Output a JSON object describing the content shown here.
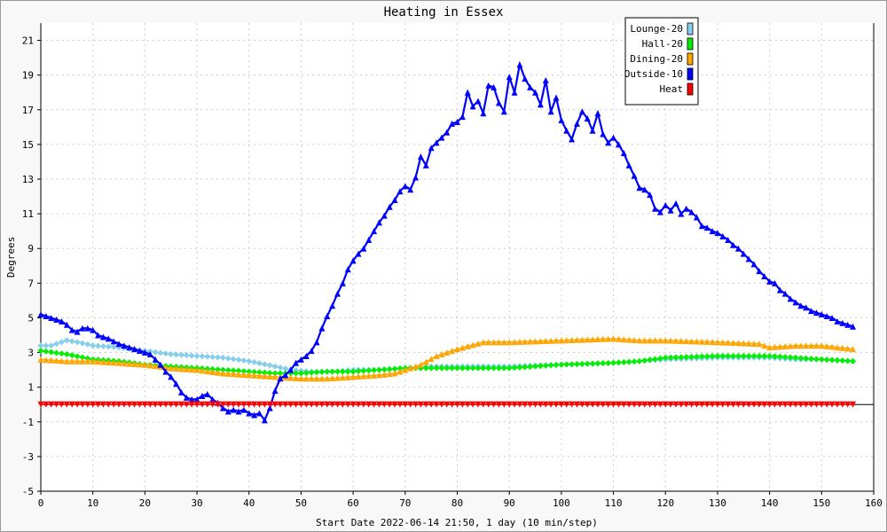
{
  "chart_data": {
    "type": "line",
    "title": "Heating in Essex",
    "xlabel": "Start Date 2022-06-14 21:50, 1 day (10 min/step)",
    "ylabel": "Degrees",
    "xlim": [
      0,
      160
    ],
    "ylim": [
      -5,
      22
    ],
    "xticks": [
      0,
      10,
      20,
      30,
      40,
      50,
      60,
      70,
      80,
      90,
      100,
      110,
      120,
      130,
      140,
      150,
      160
    ],
    "yticks": [
      -5,
      -3,
      -1,
      1,
      3,
      5,
      7,
      9,
      11,
      13,
      15,
      17,
      19,
      21
    ],
    "grid": true,
    "legend_position": "top-right",
    "series": [
      {
        "name": "Lounge-20",
        "color": "#87ceeb",
        "marker": "diamond",
        "points": [
          [
            0,
            3.4
          ],
          [
            2,
            3.4
          ],
          [
            4,
            3.6
          ],
          [
            5,
            3.7
          ],
          [
            7,
            3.6
          ],
          [
            10,
            3.4
          ],
          [
            15,
            3.3
          ],
          [
            20,
            3.1
          ],
          [
            25,
            2.9
          ],
          [
            30,
            2.8
          ],
          [
            35,
            2.7
          ],
          [
            40,
            2.5
          ],
          [
            45,
            2.2
          ],
          [
            48,
            2.0
          ],
          [
            52,
            1.9
          ],
          [
            56,
            1.9
          ],
          [
            60,
            2.0
          ],
          [
            65,
            2.0
          ],
          [
            70,
            2.1
          ],
          [
            75,
            2.2
          ],
          [
            80,
            2.2
          ],
          [
            90,
            2.2
          ],
          [
            100,
            2.3
          ],
          [
            110,
            2.4
          ],
          [
            120,
            2.6
          ],
          [
            130,
            2.7
          ],
          [
            140,
            2.7
          ],
          [
            145,
            2.6
          ],
          [
            150,
            2.6
          ],
          [
            156,
            2.5
          ]
        ]
      },
      {
        "name": "Hall-20",
        "color": "#00ee00",
        "marker": "diamond",
        "points": [
          [
            0,
            3.1
          ],
          [
            5,
            2.9
          ],
          [
            10,
            2.6
          ],
          [
            15,
            2.5
          ],
          [
            20,
            2.3
          ],
          [
            25,
            2.2
          ],
          [
            30,
            2.1
          ],
          [
            35,
            2.0
          ],
          [
            40,
            1.9
          ],
          [
            45,
            1.8
          ],
          [
            50,
            1.8
          ],
          [
            55,
            1.9
          ],
          [
            60,
            1.9
          ],
          [
            65,
            2.0
          ],
          [
            70,
            2.1
          ],
          [
            75,
            2.1
          ],
          [
            80,
            2.1
          ],
          [
            90,
            2.1
          ],
          [
            100,
            2.3
          ],
          [
            110,
            2.4
          ],
          [
            115,
            2.5
          ],
          [
            120,
            2.7
          ],
          [
            130,
            2.8
          ],
          [
            140,
            2.8
          ],
          [
            145,
            2.7
          ],
          [
            150,
            2.6
          ],
          [
            156,
            2.5
          ]
        ]
      },
      {
        "name": "Dining-20",
        "color": "#ffa500",
        "marker": "triangle",
        "points": [
          [
            0,
            2.6
          ],
          [
            5,
            2.5
          ],
          [
            10,
            2.5
          ],
          [
            15,
            2.4
          ],
          [
            20,
            2.3
          ],
          [
            25,
            2.1
          ],
          [
            30,
            2.0
          ],
          [
            35,
            1.8
          ],
          [
            40,
            1.7
          ],
          [
            45,
            1.6
          ],
          [
            50,
            1.5
          ],
          [
            55,
            1.5
          ],
          [
            60,
            1.6
          ],
          [
            65,
            1.7
          ],
          [
            68,
            1.8
          ],
          [
            70,
            2.0
          ],
          [
            73,
            2.3
          ],
          [
            76,
            2.8
          ],
          [
            80,
            3.2
          ],
          [
            85,
            3.6
          ],
          [
            90,
            3.6
          ],
          [
            100,
            3.7
          ],
          [
            110,
            3.8
          ],
          [
            115,
            3.7
          ],
          [
            120,
            3.7
          ],
          [
            130,
            3.6
          ],
          [
            138,
            3.5
          ],
          [
            140,
            3.3
          ],
          [
            145,
            3.4
          ],
          [
            150,
            3.4
          ],
          [
            156,
            3.2
          ]
        ]
      },
      {
        "name": "Outside-10",
        "color": "#0000ff",
        "marker": "triangle",
        "points": [
          [
            0,
            5.2
          ],
          [
            2,
            5.0
          ],
          [
            4,
            4.8
          ],
          [
            5,
            4.6
          ],
          [
            6,
            4.3
          ],
          [
            7,
            4.2
          ],
          [
            8,
            4.4
          ],
          [
            9,
            4.4
          ],
          [
            10,
            4.3
          ],
          [
            11,
            4.0
          ],
          [
            13,
            3.8
          ],
          [
            15,
            3.5
          ],
          [
            17,
            3.3
          ],
          [
            19,
            3.1
          ],
          [
            21,
            2.9
          ],
          [
            22,
            2.6
          ],
          [
            23,
            2.3
          ],
          [
            24,
            1.9
          ],
          [
            25,
            1.6
          ],
          [
            26,
            1.2
          ],
          [
            27,
            0.7
          ],
          [
            28,
            0.4
          ],
          [
            29,
            0.3
          ],
          [
            30,
            0.3
          ],
          [
            31,
            0.5
          ],
          [
            32,
            0.6
          ],
          [
            33,
            0.3
          ],
          [
            34,
            0.1
          ],
          [
            35,
            -0.2
          ],
          [
            36,
            -0.4
          ],
          [
            37,
            -0.3
          ],
          [
            38,
            -0.4
          ],
          [
            39,
            -0.3
          ],
          [
            40,
            -0.5
          ],
          [
            41,
            -0.6
          ],
          [
            42,
            -0.5
          ],
          [
            43,
            -0.9
          ],
          [
            44,
            -0.2
          ],
          [
            45,
            0.8
          ],
          [
            46,
            1.5
          ],
          [
            47,
            1.7
          ],
          [
            48,
            2.0
          ],
          [
            49,
            2.4
          ],
          [
            50,
            2.6
          ],
          [
            51,
            2.8
          ],
          [
            52,
            3.1
          ],
          [
            53,
            3.6
          ],
          [
            54,
            4.4
          ],
          [
            55,
            5.1
          ],
          [
            56,
            5.7
          ],
          [
            57,
            6.4
          ],
          [
            58,
            7.0
          ],
          [
            59,
            7.8
          ],
          [
            60,
            8.3
          ],
          [
            61,
            8.7
          ],
          [
            62,
            9.0
          ],
          [
            63,
            9.5
          ],
          [
            64,
            10.0
          ],
          [
            65,
            10.5
          ],
          [
            66,
            10.9
          ],
          [
            67,
            11.4
          ],
          [
            68,
            11.8
          ],
          [
            69,
            12.3
          ],
          [
            70,
            12.6
          ],
          [
            71,
            12.4
          ],
          [
            72,
            13.1
          ],
          [
            73,
            14.3
          ],
          [
            74,
            13.8
          ],
          [
            75,
            14.8
          ],
          [
            76,
            15.1
          ],
          [
            77,
            15.4
          ],
          [
            78,
            15.7
          ],
          [
            79,
            16.2
          ],
          [
            80,
            16.3
          ],
          [
            81,
            16.6
          ],
          [
            82,
            18.0
          ],
          [
            83,
            17.2
          ],
          [
            84,
            17.5
          ],
          [
            85,
            16.8
          ],
          [
            86,
            18.4
          ],
          [
            87,
            18.3
          ],
          [
            88,
            17.4
          ],
          [
            89,
            16.9
          ],
          [
            90,
            18.9
          ],
          [
            91,
            18.0
          ],
          [
            92,
            19.6
          ],
          [
            93,
            18.8
          ],
          [
            94,
            18.3
          ],
          [
            95,
            18.0
          ],
          [
            96,
            17.3
          ],
          [
            97,
            18.7
          ],
          [
            98,
            16.9
          ],
          [
            99,
            17.7
          ],
          [
            100,
            16.4
          ],
          [
            101,
            15.8
          ],
          [
            102,
            15.3
          ],
          [
            103,
            16.2
          ],
          [
            104,
            16.9
          ],
          [
            105,
            16.5
          ],
          [
            106,
            15.8
          ],
          [
            107,
            16.8
          ],
          [
            108,
            15.6
          ],
          [
            109,
            15.1
          ],
          [
            110,
            15.4
          ],
          [
            111,
            15.0
          ],
          [
            112,
            14.5
          ],
          [
            113,
            13.8
          ],
          [
            114,
            13.2
          ],
          [
            115,
            12.5
          ],
          [
            116,
            12.4
          ],
          [
            117,
            12.1
          ],
          [
            118,
            11.3
          ],
          [
            119,
            11.1
          ],
          [
            120,
            11.5
          ],
          [
            121,
            11.2
          ],
          [
            122,
            11.6
          ],
          [
            123,
            11.0
          ],
          [
            124,
            11.3
          ],
          [
            125,
            11.1
          ],
          [
            126,
            10.8
          ],
          [
            127,
            10.3
          ],
          [
            128,
            10.2
          ],
          [
            129,
            10.0
          ],
          [
            130,
            9.9
          ],
          [
            131,
            9.7
          ],
          [
            132,
            9.5
          ],
          [
            133,
            9.2
          ],
          [
            134,
            9.0
          ],
          [
            135,
            8.7
          ],
          [
            136,
            8.4
          ],
          [
            137,
            8.1
          ],
          [
            138,
            7.7
          ],
          [
            139,
            7.4
          ],
          [
            140,
            7.1
          ],
          [
            141,
            7.0
          ],
          [
            142,
            6.6
          ],
          [
            143,
            6.4
          ],
          [
            144,
            6.1
          ],
          [
            145,
            5.9
          ],
          [
            146,
            5.7
          ],
          [
            147,
            5.6
          ],
          [
            148,
            5.4
          ],
          [
            149,
            5.3
          ],
          [
            150,
            5.2
          ],
          [
            151,
            5.1
          ],
          [
            152,
            5.0
          ],
          [
            153,
            4.8
          ],
          [
            154,
            4.7
          ],
          [
            155,
            4.6
          ],
          [
            156,
            4.5
          ]
        ]
      },
      {
        "name": "Heat",
        "color": "#ff0000",
        "marker": "triangle-down",
        "points": [
          [
            0,
            0
          ],
          [
            156,
            0
          ]
        ]
      }
    ]
  }
}
